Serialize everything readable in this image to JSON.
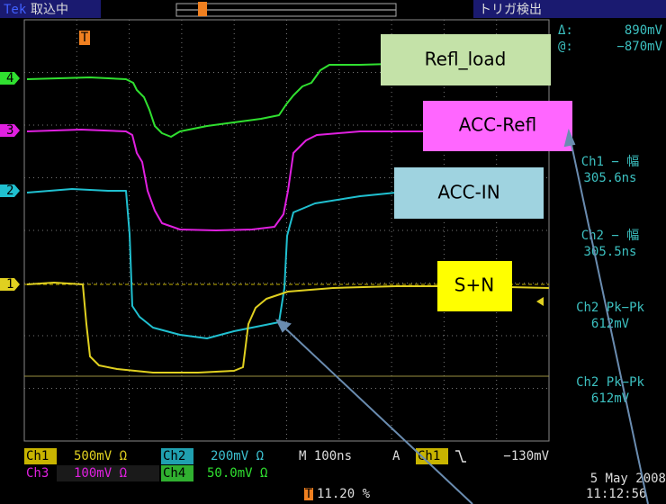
{
  "top_bar": {
    "brand": "Tek",
    "status": "取込中",
    "trigger_status": "トリガ検出"
  },
  "cursor": {
    "delta_label": "Δ:",
    "delta_value": "890mV",
    "at_label": "@:",
    "at_value": "−870mV"
  },
  "channel_markers": [
    "4",
    "3",
    "2",
    "1"
  ],
  "trigger_marker": "T",
  "annotations": [
    "Refl_load",
    "ACC-Refl",
    "ACC-IN",
    "S+N"
  ],
  "measurements": [
    {
      "label": "Ch1 − 幅",
      "value": "305.6ns"
    },
    {
      "label": "Ch2 − 幅",
      "value": "305.5ns"
    },
    {
      "label": "Ch2 Pk−Pk",
      "value": "612mV"
    },
    {
      "label": "Ch2 Pk−Pk",
      "value": "612mV"
    }
  ],
  "settings": {
    "ch1": {
      "name": "Ch1",
      "scale": "500mV Ω"
    },
    "ch2": {
      "name": "Ch2",
      "scale": "200mV Ω"
    },
    "ch3": {
      "name": "Ch3",
      "scale": "100mV Ω"
    },
    "ch4": {
      "name": "Ch4",
      "scale": "50.0mV Ω"
    },
    "timebase": "M 100ns",
    "trigger_mode": "A",
    "trigger_source": "Ch1",
    "trigger_level": "−130mV"
  },
  "trigger_position": "11.20 %",
  "date": "5 May 2008",
  "time": "11:12:56"
}
